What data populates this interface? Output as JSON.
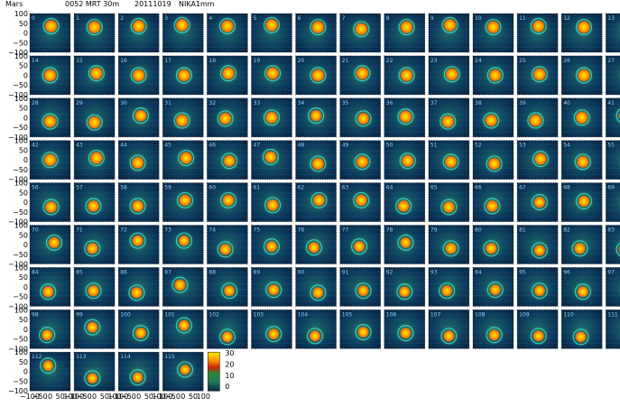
{
  "header": {
    "source": "Mars",
    "scan_info": "0052 MRT 30m",
    "date": "20111019",
    "instrument": "NIKA1mm"
  },
  "colors": {
    "background": "#ffffff",
    "panel_dark": "#0a2a4a",
    "halo": "#2a8a5a",
    "ring": "#40e0c0",
    "hot": "#ff9900",
    "core": "#ffe800"
  },
  "chart_data": {
    "type": "heatmap",
    "title": "",
    "grid": {
      "rows": 9,
      "cols": 14,
      "panel_count": 116
    },
    "y_ticks": [
      "100",
      "50",
      "0",
      "−50",
      "−100"
    ],
    "x_ticks_row_0": [
      "−100",
      "−50",
      "0",
      "50",
      "100"
    ],
    "x_ticks_row_1": [
      "−100",
      "−50",
      "0",
      "50",
      "100"
    ],
    "x_ticks_row_2": [
      "−100",
      "−50",
      "0",
      "50",
      "100"
    ],
    "x_ticks_row_3": [
      "−100",
      "−50",
      "0",
      "50",
      "100"
    ],
    "x_ticks_row_4": [
      "−100",
      "−50",
      "0",
      "50",
      "100"
    ],
    "xlim": [
      -100,
      100
    ],
    "ylim": [
      -100,
      100
    ],
    "colorbar": {
      "ticks": [
        "30",
        "20",
        "10",
        "0"
      ],
      "range": [
        0,
        30
      ]
    },
    "panels": [
      {
        "id": "0",
        "x": 5,
        "y": 35,
        "peak": 30
      },
      {
        "id": "1",
        "x": 0,
        "y": 30,
        "peak": 30
      },
      {
        "id": "2",
        "x": 0,
        "y": 35,
        "peak": 30
      },
      {
        "id": "3",
        "x": -5,
        "y": 40,
        "peak": 30
      },
      {
        "id": "4",
        "x": 0,
        "y": 35,
        "peak": 30
      },
      {
        "id": "5",
        "x": 0,
        "y": 40,
        "peak": 30
      },
      {
        "id": "6",
        "x": 10,
        "y": 30,
        "peak": 30
      },
      {
        "id": "7",
        "x": 5,
        "y": 20,
        "peak": 30
      },
      {
        "id": "8",
        "x": 10,
        "y": 30,
        "peak": 30
      },
      {
        "id": "9",
        "x": 5,
        "y": 40,
        "peak": 30
      },
      {
        "id": "10",
        "x": 0,
        "y": 30,
        "peak": 30
      },
      {
        "id": "11",
        "x": 5,
        "y": 35,
        "peak": 28
      },
      {
        "id": "12",
        "x": 10,
        "y": 30,
        "peak": 30
      },
      {
        "id": "13",
        "x": 10,
        "y": 35,
        "peak": 30
      },
      {
        "id": "14",
        "x": 0,
        "y": 0,
        "peak": 30
      },
      {
        "id": "15",
        "x": 10,
        "y": 10,
        "peak": 30
      },
      {
        "id": "16",
        "x": 0,
        "y": 0,
        "peak": 30
      },
      {
        "id": "17",
        "x": 5,
        "y": 0,
        "peak": 30
      },
      {
        "id": "18",
        "x": 5,
        "y": 10,
        "peak": 30
      },
      {
        "id": "19",
        "x": 5,
        "y": 10,
        "peak": 30
      },
      {
        "id": "20",
        "x": 10,
        "y": 0,
        "peak": 30
      },
      {
        "id": "21",
        "x": 10,
        "y": 10,
        "peak": 30
      },
      {
        "id": "22",
        "x": 10,
        "y": 0,
        "peak": 30
      },
      {
        "id": "23",
        "x": 15,
        "y": 5,
        "peak": 30
      },
      {
        "id": "24",
        "x": 10,
        "y": 0,
        "peak": 28
      },
      {
        "id": "25",
        "x": 10,
        "y": 5,
        "peak": 30
      },
      {
        "id": "26",
        "x": 10,
        "y": 0,
        "peak": 30
      },
      {
        "id": "27",
        "x": 10,
        "y": 5,
        "peak": 30
      },
      {
        "id": "28",
        "x": 0,
        "y": -20,
        "peak": 30
      },
      {
        "id": "29",
        "x": 0,
        "y": -25,
        "peak": 30
      },
      {
        "id": "30",
        "x": 10,
        "y": 10,
        "peak": 26
      },
      {
        "id": "31",
        "x": -5,
        "y": -15,
        "peak": 30
      },
      {
        "id": "32",
        "x": -10,
        "y": -5,
        "peak": 28
      },
      {
        "id": "33",
        "x": 0,
        "y": 0,
        "peak": 28
      },
      {
        "id": "34",
        "x": 0,
        "y": 10,
        "peak": 24
      },
      {
        "id": "35",
        "x": 15,
        "y": -5,
        "peak": 26
      },
      {
        "id": "36",
        "x": 5,
        "y": 5,
        "peak": 30
      },
      {
        "id": "37",
        "x": -5,
        "y": -20,
        "peak": 30
      },
      {
        "id": "38",
        "x": -10,
        "y": -15,
        "peak": 28
      },
      {
        "id": "39",
        "x": -10,
        "y": -15,
        "peak": 30
      },
      {
        "id": "40",
        "x": 0,
        "y": 0,
        "peak": 30
      },
      {
        "id": "41",
        "x": -10,
        "y": 10,
        "peak": 20
      },
      {
        "id": "42",
        "x": 0,
        "y": 0,
        "peak": 30
      },
      {
        "id": "43",
        "x": 10,
        "y": 10,
        "peak": 30
      },
      {
        "id": "44",
        "x": -5,
        "y": -15,
        "peak": 28
      },
      {
        "id": "45",
        "x": 15,
        "y": 10,
        "peak": 28
      },
      {
        "id": "46",
        "x": 10,
        "y": -5,
        "peak": 26
      },
      {
        "id": "47",
        "x": -5,
        "y": 15,
        "peak": 26
      },
      {
        "id": "48",
        "x": 10,
        "y": -20,
        "peak": 28
      },
      {
        "id": "49",
        "x": 10,
        "y": -10,
        "peak": 28
      },
      {
        "id": "50",
        "x": 15,
        "y": -5,
        "peak": 28
      },
      {
        "id": "51",
        "x": 10,
        "y": -10,
        "peak": 28
      },
      {
        "id": "52",
        "x": 5,
        "y": -20,
        "peak": 28
      },
      {
        "id": "53",
        "x": 15,
        "y": 5,
        "peak": 28
      },
      {
        "id": "54",
        "x": 5,
        "y": -10,
        "peak": 28
      },
      {
        "id": "55",
        "x": 10,
        "y": -20,
        "peak": 26
      },
      {
        "id": "56",
        "x": 5,
        "y": -25,
        "peak": 26
      },
      {
        "id": "57",
        "x": -5,
        "y": -20,
        "peak": 26
      },
      {
        "id": "58",
        "x": -5,
        "y": -20,
        "peak": 26
      },
      {
        "id": "59",
        "x": 10,
        "y": 10,
        "peak": 26
      },
      {
        "id": "60",
        "x": 5,
        "y": 10,
        "peak": 26
      },
      {
        "id": "61",
        "x": 5,
        "y": -15,
        "peak": 26
      },
      {
        "id": "62",
        "x": 15,
        "y": 10,
        "peak": 26
      },
      {
        "id": "63",
        "x": 5,
        "y": 10,
        "peak": 26
      },
      {
        "id": "64",
        "x": -5,
        "y": -20,
        "peak": 26
      },
      {
        "id": "65",
        "x": 0,
        "y": -25,
        "peak": 26
      },
      {
        "id": "66",
        "x": -5,
        "y": -20,
        "peak": 26
      },
      {
        "id": "67",
        "x": 10,
        "y": 0,
        "peak": 24
      },
      {
        "id": "68",
        "x": 10,
        "y": 5,
        "peak": 24
      },
      {
        "id": "69",
        "x": 10,
        "y": -5,
        "peak": 26
      },
      {
        "id": "70",
        "x": 20,
        "y": 10,
        "peak": 24
      },
      {
        "id": "71",
        "x": -10,
        "y": -20,
        "peak": 24
      },
      {
        "id": "72",
        "x": -5,
        "y": 20,
        "peak": 22
      },
      {
        "id": "73",
        "x": 5,
        "y": 20,
        "peak": 20
      },
      {
        "id": "74",
        "x": -10,
        "y": -25,
        "peak": 24
      },
      {
        "id": "75",
        "x": 0,
        "y": -10,
        "peak": 22
      },
      {
        "id": "76",
        "x": -10,
        "y": -15,
        "peak": 22
      },
      {
        "id": "77",
        "x": -5,
        "y": -10,
        "peak": 22
      },
      {
        "id": "78",
        "x": 5,
        "y": 10,
        "peak": 20
      },
      {
        "id": "79",
        "x": 10,
        "y": -20,
        "peak": 24
      },
      {
        "id": "80",
        "x": -10,
        "y": -20,
        "peak": 24
      },
      {
        "id": "81",
        "x": 10,
        "y": -30,
        "peak": 24
      },
      {
        "id": "82",
        "x": -10,
        "y": -20,
        "peak": 24
      },
      {
        "id": "83",
        "x": -10,
        "y": -25,
        "peak": 22
      },
      {
        "id": "84",
        "x": -10,
        "y": -25,
        "peak": 24
      },
      {
        "id": "85",
        "x": -5,
        "y": -20,
        "peak": 24
      },
      {
        "id": "86",
        "x": -10,
        "y": -30,
        "peak": 24
      },
      {
        "id": "87",
        "x": -15,
        "y": 10,
        "peak": 24
      },
      {
        "id": "88",
        "x": 10,
        "y": -20,
        "peak": 22
      },
      {
        "id": "89",
        "x": 10,
        "y": -15,
        "peak": 22
      },
      {
        "id": "90",
        "x": 10,
        "y": -30,
        "peak": 22
      },
      {
        "id": "91",
        "x": 15,
        "y": -20,
        "peak": 22
      },
      {
        "id": "92",
        "x": 0,
        "y": -25,
        "peak": 22
      },
      {
        "id": "93",
        "x": -10,
        "y": -20,
        "peak": 22
      },
      {
        "id": "94",
        "x": 10,
        "y": -15,
        "peak": 22
      },
      {
        "id": "95",
        "x": 10,
        "y": -20,
        "peak": 22
      },
      {
        "id": "96",
        "x": 5,
        "y": -25,
        "peak": 22
      },
      {
        "id": "97",
        "x": 10,
        "y": -20,
        "peak": 22
      },
      {
        "id": "98",
        "x": -15,
        "y": -30,
        "peak": 22
      },
      {
        "id": "99",
        "x": -10,
        "y": 10,
        "peak": 22
      },
      {
        "id": "100",
        "x": 10,
        "y": -20,
        "peak": 22
      },
      {
        "id": "101",
        "x": 5,
        "y": 20,
        "peak": 22
      },
      {
        "id": "102",
        "x": 0,
        "y": -40,
        "peak": 22
      },
      {
        "id": "103",
        "x": 10,
        "y": -25,
        "peak": 22
      },
      {
        "id": "104",
        "x": -5,
        "y": -35,
        "peak": 22
      },
      {
        "id": "105",
        "x": 15,
        "y": -15,
        "peak": 22
      },
      {
        "id": "106",
        "x": 5,
        "y": -20,
        "peak": 22
      },
      {
        "id": "107",
        "x": 0,
        "y": -35,
        "peak": 22
      },
      {
        "id": "108",
        "x": 5,
        "y": -30,
        "peak": 22
      },
      {
        "id": "109",
        "x": 5,
        "y": -35,
        "peak": 22
      },
      {
        "id": "110",
        "x": -5,
        "y": -40,
        "peak": 22
      },
      {
        "id": "111",
        "x": 15,
        "y": -30,
        "peak": 22
      },
      {
        "id": "112",
        "x": -10,
        "y": 30,
        "peak": 20
      },
      {
        "id": "113",
        "x": -10,
        "y": -35,
        "peak": 20
      },
      {
        "id": "114",
        "x": -5,
        "y": -30,
        "peak": 20
      },
      {
        "id": "115",
        "x": 10,
        "y": 10,
        "peak": 18
      }
    ]
  }
}
